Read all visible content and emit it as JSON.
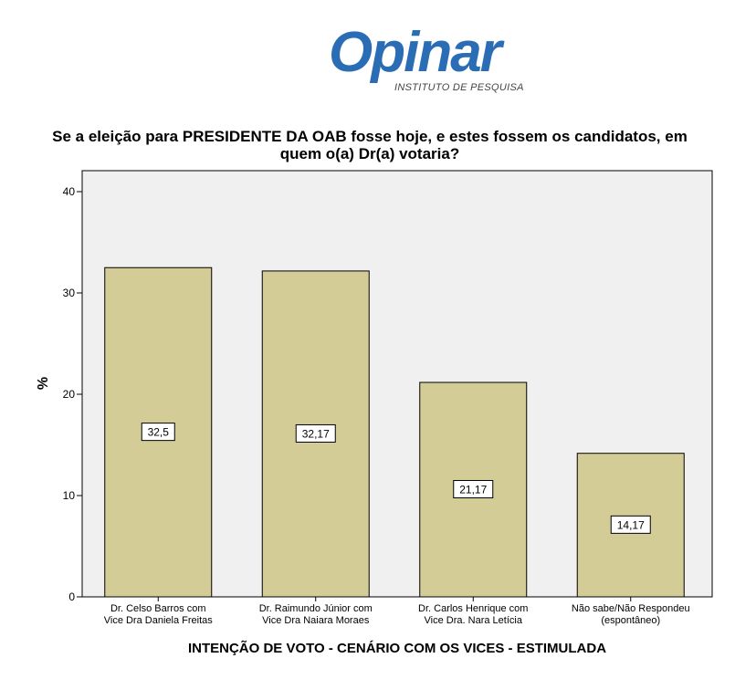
{
  "logo": {
    "wordmark": "Opinar",
    "tagline": "INSTITUTO DE PESQUISA",
    "colors": {
      "blue": "#2a6db5",
      "orange": "#e8892a"
    }
  },
  "chart_data": {
    "type": "bar",
    "title": "Se a eleição para PRESIDENTE DA OAB fosse hoje, e estes fossem os candidatos, em quem o(a) Dr(a) votaria?",
    "xlabel": "INTENÇÃO DE VOTO - CENÁRIO COM OS VICES - ESTIMULADA",
    "ylabel": "%",
    "ylim": [
      0,
      40
    ],
    "yticks": [
      "0",
      "10",
      "20",
      "30",
      "40"
    ],
    "categories": [
      [
        "Dr. Celso Barros com",
        "Vice Dra Daniela Freitas"
      ],
      [
        "Dr. Raimundo Júnior com",
        "Vice Dra Naiara Moraes"
      ],
      [
        "Dr. Carlos Henrique  com",
        "Vice Dra. Nara Letícia"
      ],
      [
        "Não sabe/Não Respondeu",
        "(espontâneo)"
      ]
    ],
    "values": [
      32.5,
      32.17,
      21.17,
      14.17
    ],
    "value_labels": [
      "32,5",
      "32,17",
      "21,17",
      "14,17"
    ],
    "grid": false,
    "colors": {
      "bar": "#d4cc96",
      "plot_background": "#f0f0f0"
    }
  }
}
